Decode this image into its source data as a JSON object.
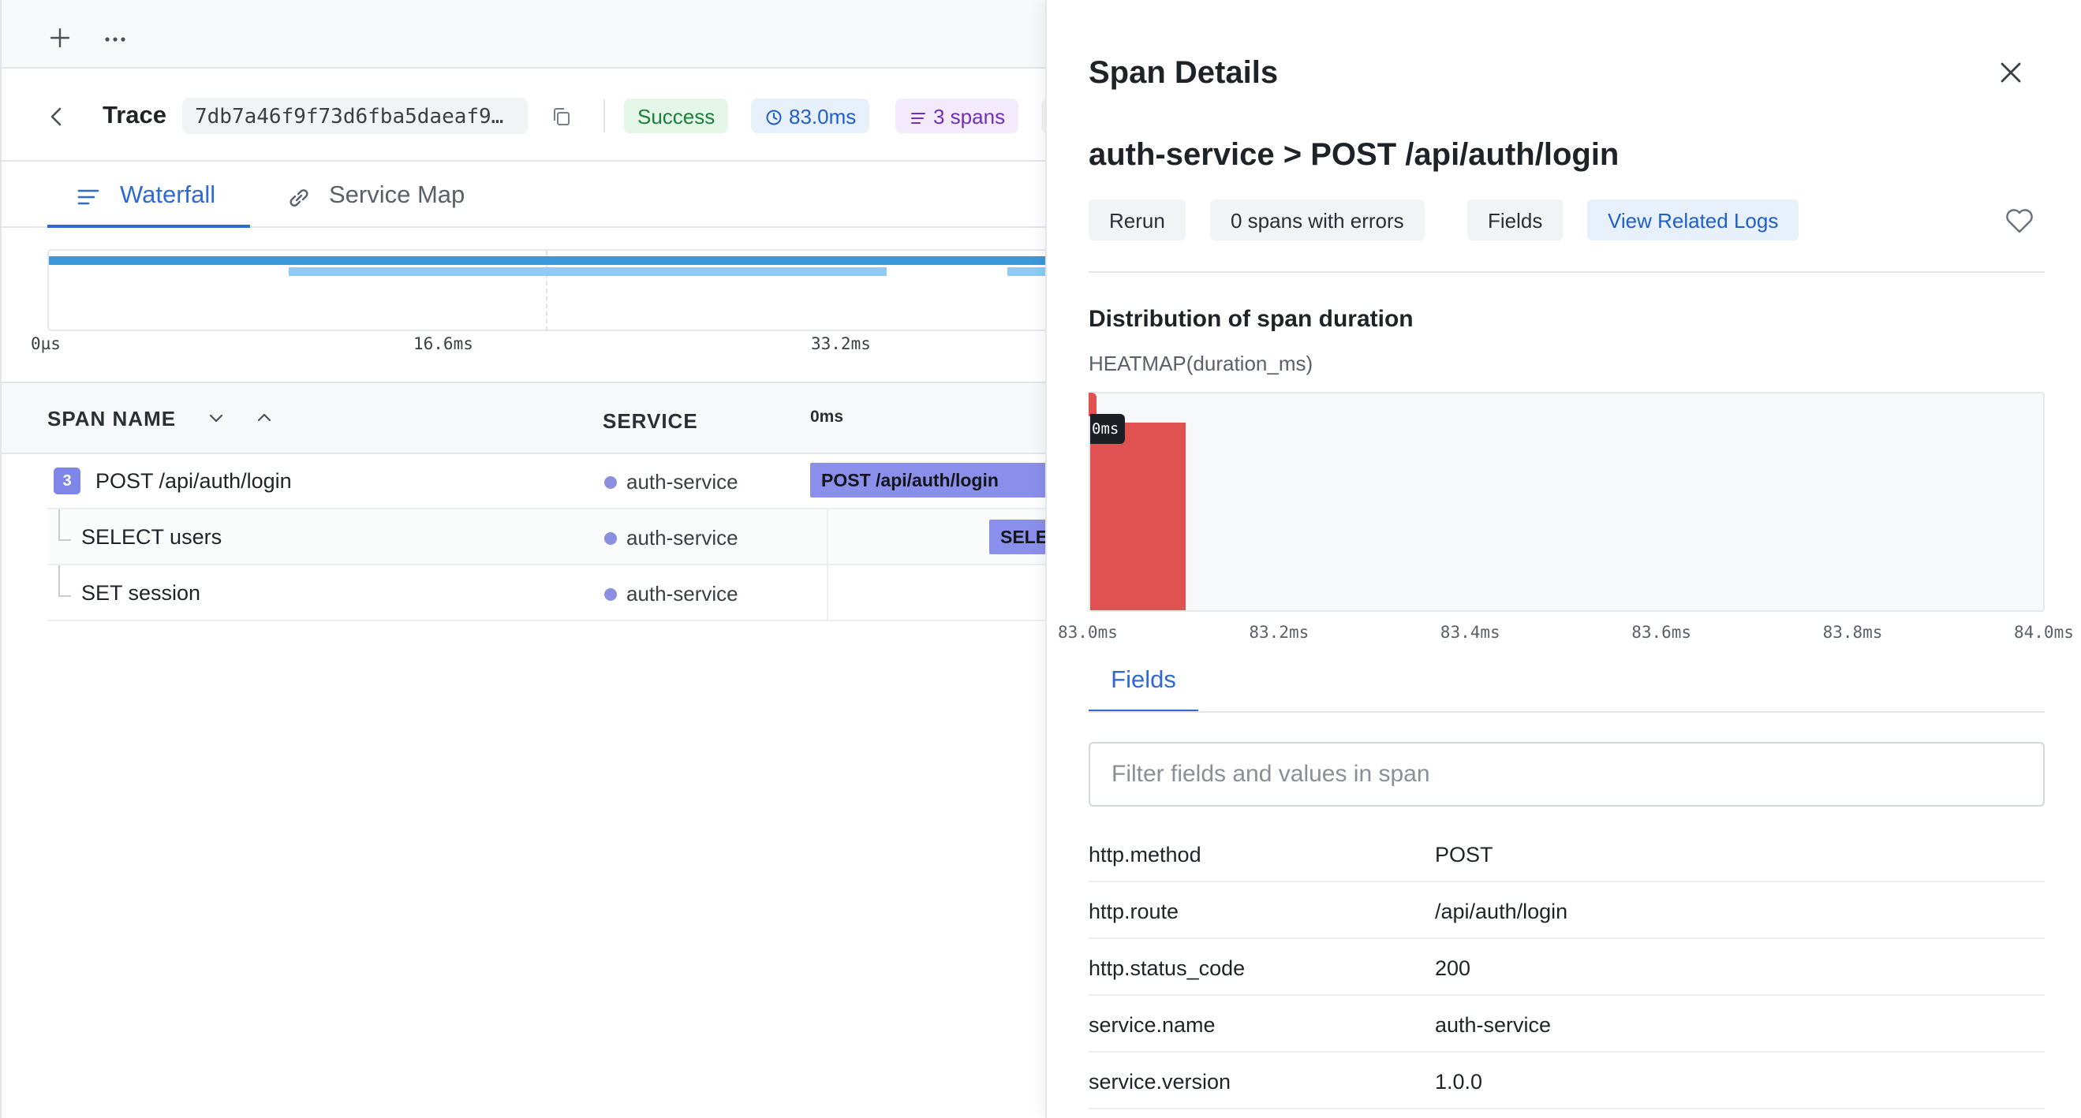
{
  "colors": {
    "accent": "#2f6ad4",
    "success": "#1a7f37",
    "span_bar": "#8b8fec",
    "heatmap": "#e05252",
    "service_dot": "#8a8fe0"
  },
  "toolbar": {
    "icons": [
      "plus-icon",
      "more-icon"
    ]
  },
  "trace": {
    "label": "Trace",
    "id": "7db7a46f9f73d6fba5daeaf9…",
    "status": "Success",
    "duration": "83.0ms",
    "spans": "3 spans"
  },
  "tabs": [
    {
      "label": "Waterfall",
      "icon": "list-icon",
      "active": true
    },
    {
      "label": "Service Map",
      "icon": "link-icon",
      "active": false
    }
  ],
  "minimap": {
    "ticks": [
      "0µs",
      "16.6ms",
      "33.2ms"
    ]
  },
  "table": {
    "columns": {
      "span_name": "SPAN NAME",
      "service": "SERVICE",
      "time": "0ms"
    },
    "rows": [
      {
        "count": "3",
        "name": "POST /api/auth/login",
        "service": "auth-service",
        "bar_label": "POST /api/auth/login",
        "depth": 0
      },
      {
        "count": "",
        "name": "SELECT users",
        "service": "auth-service",
        "bar_label": "SELECT users",
        "depth": 1
      },
      {
        "count": "",
        "name": "SET session",
        "service": "auth-service",
        "bar_label": "",
        "depth": 1
      }
    ]
  },
  "panel": {
    "title": "Span Details",
    "span_title": "auth-service > POST /api/auth/login",
    "buttons": {
      "rerun": "Rerun",
      "errors": "0 spans with errors",
      "fields": "Fields",
      "logs": "View Related Logs"
    },
    "distribution": {
      "title": "Distribution of span duration",
      "subtitle": "HEATMAP(duration_ms)",
      "tooltip": "0ms"
    },
    "fields_tab": "Fields",
    "filter_placeholder": "Filter fields and values in span",
    "fields": [
      {
        "key": "http.method",
        "value": "POST"
      },
      {
        "key": "http.route",
        "value": "/api/auth/login"
      },
      {
        "key": "http.status_code",
        "value": "200"
      },
      {
        "key": "service.name",
        "value": "auth-service"
      },
      {
        "key": "service.version",
        "value": "1.0.0"
      }
    ]
  },
  "chart_data": {
    "type": "heatmap",
    "title": "Distribution of span duration",
    "subtitle": "HEATMAP(duration_ms)",
    "x_ticks": [
      "83.0ms",
      "83.2ms",
      "83.4ms",
      "83.6ms",
      "83.8ms",
      "84.0ms"
    ],
    "xlim": [
      83.0,
      84.0
    ],
    "cells": [
      {
        "x_start": 83.0,
        "x_end": 83.1,
        "count": 1
      }
    ]
  }
}
